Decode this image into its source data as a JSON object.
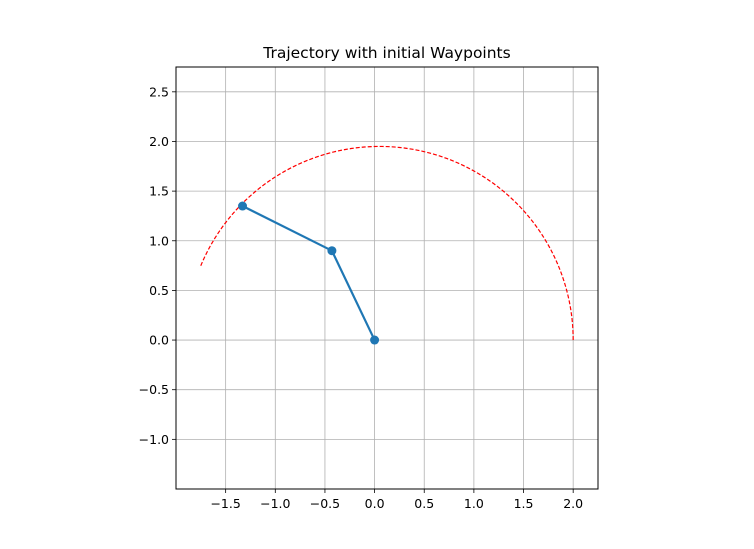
{
  "chart_data": {
    "type": "line",
    "title": "Trajectory with initial Waypoints",
    "xlabel": "",
    "ylabel": "",
    "xlim": [
      -2.0,
      2.25
    ],
    "ylim": [
      -1.5,
      2.75
    ],
    "grid": true,
    "x_ticks": [
      -1.5,
      -1.0,
      -0.5,
      0.0,
      0.5,
      1.0,
      1.5,
      2.0
    ],
    "x_tick_labels": [
      "−1.5",
      "−1.0",
      "−0.5",
      "0.0",
      "0.5",
      "1.0",
      "1.5",
      "2.0"
    ],
    "y_ticks": [
      -1.0,
      -0.5,
      0.0,
      0.5,
      1.0,
      1.5,
      2.0,
      2.5
    ],
    "y_tick_labels": [
      "−1.0",
      "−0.5",
      "0.0",
      "0.5",
      "1.0",
      "1.5",
      "2.0",
      "2.5"
    ],
    "series": [
      {
        "kind": "arm",
        "color": "#1f77b4",
        "x": [
          0.0,
          -0.43,
          -1.33
        ],
        "y": [
          0.0,
          0.9,
          1.35
        ]
      },
      {
        "kind": "trajectory",
        "color": "#ff0000",
        "style": "dashed",
        "arc_center": [
          0.05,
          0.0
        ],
        "arc_radius": 1.95,
        "arc_start_deg": 0,
        "arc_end_deg": 157.5
      }
    ]
  }
}
